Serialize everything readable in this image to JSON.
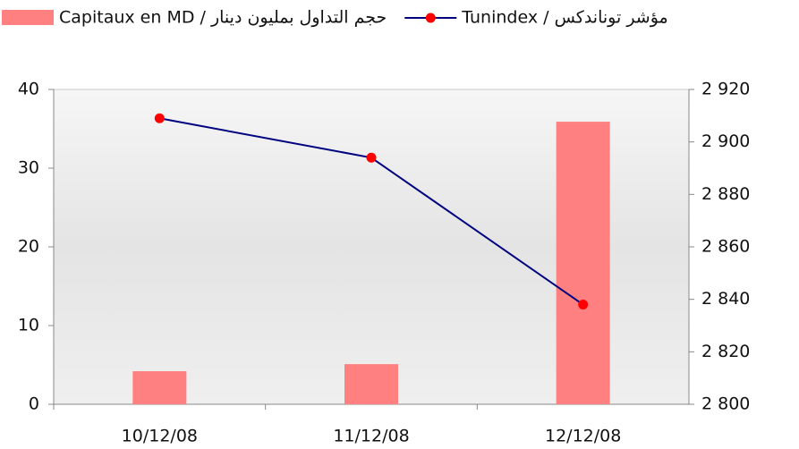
{
  "chart_data": {
    "type": "bar-line",
    "categories": [
      "10/12/08",
      "11/12/08",
      "12/12/08"
    ],
    "series": [
      {
        "name": "Capitaux en MD / حجم التداول بمليون دينار",
        "type": "bar",
        "color": "#ff8080",
        "values": [
          4.2,
          5.1,
          35.9
        ]
      },
      {
        "name": "Tunindex / مؤشر توناندكس",
        "type": "line",
        "axis": "y2",
        "color": "#000080",
        "marker_color": "#ff0000",
        "values": [
          2909,
          2894,
          2838
        ]
      }
    ],
    "ylim": [
      0,
      40
    ],
    "yticks": [
      0,
      10,
      20,
      30,
      40
    ],
    "y2lim": [
      2800,
      2920
    ],
    "y2ticks": [
      {
        "value": 2800,
        "label": "2 800"
      },
      {
        "value": 2820,
        "label": "2 820"
      },
      {
        "value": 2840,
        "label": "2 840"
      },
      {
        "value": 2860,
        "label": "2 860"
      },
      {
        "value": 2880,
        "label": "2 880"
      },
      {
        "value": 2900,
        "label": "2 900"
      },
      {
        "value": 2920,
        "label": "2 920"
      }
    ]
  }
}
